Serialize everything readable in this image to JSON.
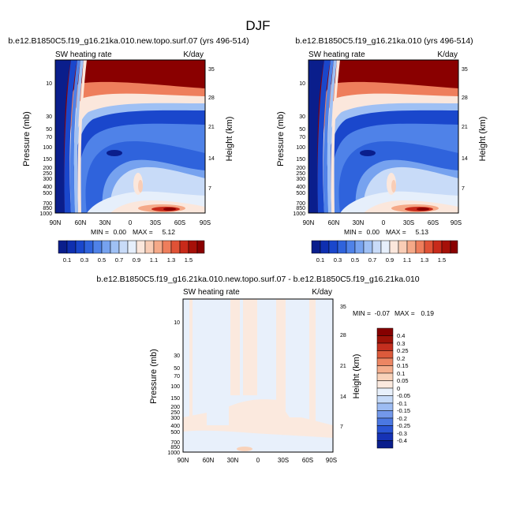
{
  "figure": {
    "title": "DJF"
  },
  "colors": {
    "seq": [
      "#0a1e8c",
      "#0f2fb0",
      "#1a47cc",
      "#2f63dc",
      "#4f82e8",
      "#76a2ef",
      "#9fc0f4",
      "#c8dbf8",
      "#e6effb",
      "#fbe7dc",
      "#f9cdb6",
      "#f5a988",
      "#ee7e5c",
      "#e05236",
      "#c82a1a",
      "#a61008",
      "#8a0000"
    ],
    "div": [
      "#0a1e8c",
      "#1633b6",
      "#2a55d4",
      "#4b78e2",
      "#7398ea",
      "#9dbcf3",
      "#c6daf8",
      "#e8f0fb",
      "#fbe9de",
      "#f8d2ba",
      "#f4ae8d",
      "#ec8663",
      "#dc5a3b",
      "#c42f1f",
      "#9e1208",
      "#860000"
    ]
  },
  "chart_data": [
    {
      "type": "heatmap",
      "name": "left",
      "title": "b.e12.B1850C5.f19_g16.21ka.010.new.topo.surf.07 (yrs 496-514)",
      "left_label": "SW heating rate",
      "right_label": "K/day",
      "xlabel": "",
      "ylabel": "Pressure (mb)",
      "y2label": "Height (km)",
      "x_ticks": [
        "90N",
        "60N",
        "30N",
        "0",
        "30S",
        "60S",
        "90S"
      ],
      "y_ticks": [
        "10",
        "30",
        "50",
        "70",
        "100",
        "150",
        "200",
        "250",
        "300",
        "400",
        "500",
        "700",
        "850",
        "1000"
      ],
      "y2_ticks": [
        "35",
        "28",
        "21",
        "14",
        "7"
      ],
      "min_label": "MIN =",
      "min_value": "0.00",
      "max_label": "MAX =",
      "max_value": "5.12",
      "colorbar_labels": [
        "0.1",
        "0.3",
        "0.5",
        "0.7",
        "0.9",
        "1.1",
        "1.3",
        "1.5"
      ]
    },
    {
      "type": "heatmap",
      "name": "right",
      "title": "b.e12.B1850C5.f19_g16.21ka.010 (yrs 496-514)",
      "left_label": "SW heating rate",
      "right_label": "K/day",
      "xlabel": "",
      "ylabel": "Pressure (mb)",
      "y2label": "Height (km)",
      "x_ticks": [
        "90N",
        "60N",
        "30N",
        "0",
        "30S",
        "60S",
        "90S"
      ],
      "y_ticks": [
        "10",
        "30",
        "50",
        "70",
        "100",
        "150",
        "200",
        "250",
        "300",
        "400",
        "500",
        "700",
        "850",
        "1000"
      ],
      "y2_ticks": [
        "35",
        "28",
        "21",
        "14",
        "7"
      ],
      "min_label": "MIN =",
      "min_value": "0.00",
      "max_label": "MAX =",
      "max_value": "5.13",
      "colorbar_labels": [
        "0.1",
        "0.3",
        "0.5",
        "0.7",
        "0.9",
        "1.1",
        "1.3",
        "1.5"
      ]
    },
    {
      "type": "heatmap",
      "name": "diff",
      "title": "b.e12.B1850C5.f19_g16.21ka.010.new.topo.surf.07 - b.e12.B1850C5.f19_g16.21ka.010",
      "left_label": "SW heating rate",
      "right_label": "K/day",
      "xlabel": "",
      "ylabel": "Pressure (mb)",
      "y2label": "Height (km)",
      "x_ticks": [
        "90N",
        "60N",
        "30N",
        "0",
        "30S",
        "60S",
        "90S"
      ],
      "y_ticks": [
        "10",
        "30",
        "50",
        "70",
        "100",
        "150",
        "200",
        "250",
        "300",
        "400",
        "500",
        "700",
        "850",
        "1000"
      ],
      "y2_ticks": [
        "35",
        "28",
        "21",
        "14",
        "7"
      ],
      "min_label": "MIN =",
      "min_value": "-0.07",
      "max_label": "MAX =",
      "max_value": "0.19",
      "colorbar_labels": [
        "0.4",
        "0.3",
        "0.25",
        "0.2",
        "0.15",
        "0.1",
        "0.05",
        "0",
        "-0.05",
        "-0.1",
        "-0.15",
        "-0.2",
        "-0.25",
        "-0.3",
        "-0.4"
      ]
    }
  ]
}
